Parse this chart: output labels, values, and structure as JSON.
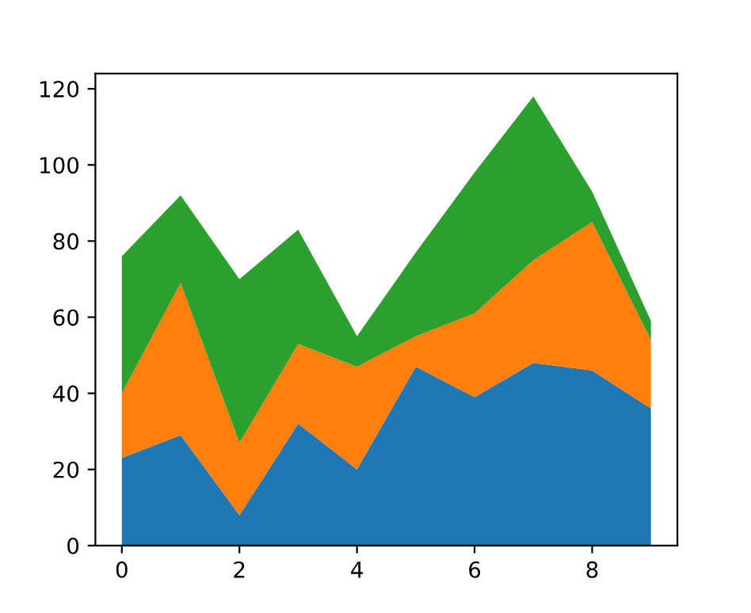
{
  "chart_data": {
    "type": "area",
    "stacked": true,
    "x": [
      0,
      1,
      2,
      3,
      4,
      5,
      6,
      7,
      8,
      9
    ],
    "series": [
      {
        "color": "#1f77b4",
        "values": [
          23,
          29,
          8,
          32,
          20,
          47,
          39,
          48,
          46,
          36
        ]
      },
      {
        "color": "#ff7f0e",
        "values": [
          17,
          40,
          19,
          21,
          27,
          8,
          22,
          27,
          39,
          18
        ]
      },
      {
        "color": "#2ca02c",
        "values": [
          36,
          23,
          43,
          30,
          8,
          22,
          37,
          43,
          8,
          5
        ]
      }
    ],
    "xlim": [
      -0.45,
      9.45
    ],
    "xticks": [
      0,
      2,
      4,
      6,
      8
    ],
    "ylim": [
      0,
      124
    ],
    "yticks": [
      0,
      20,
      40,
      60,
      80,
      100,
      120
    ],
    "grid": false,
    "legend": false
  }
}
